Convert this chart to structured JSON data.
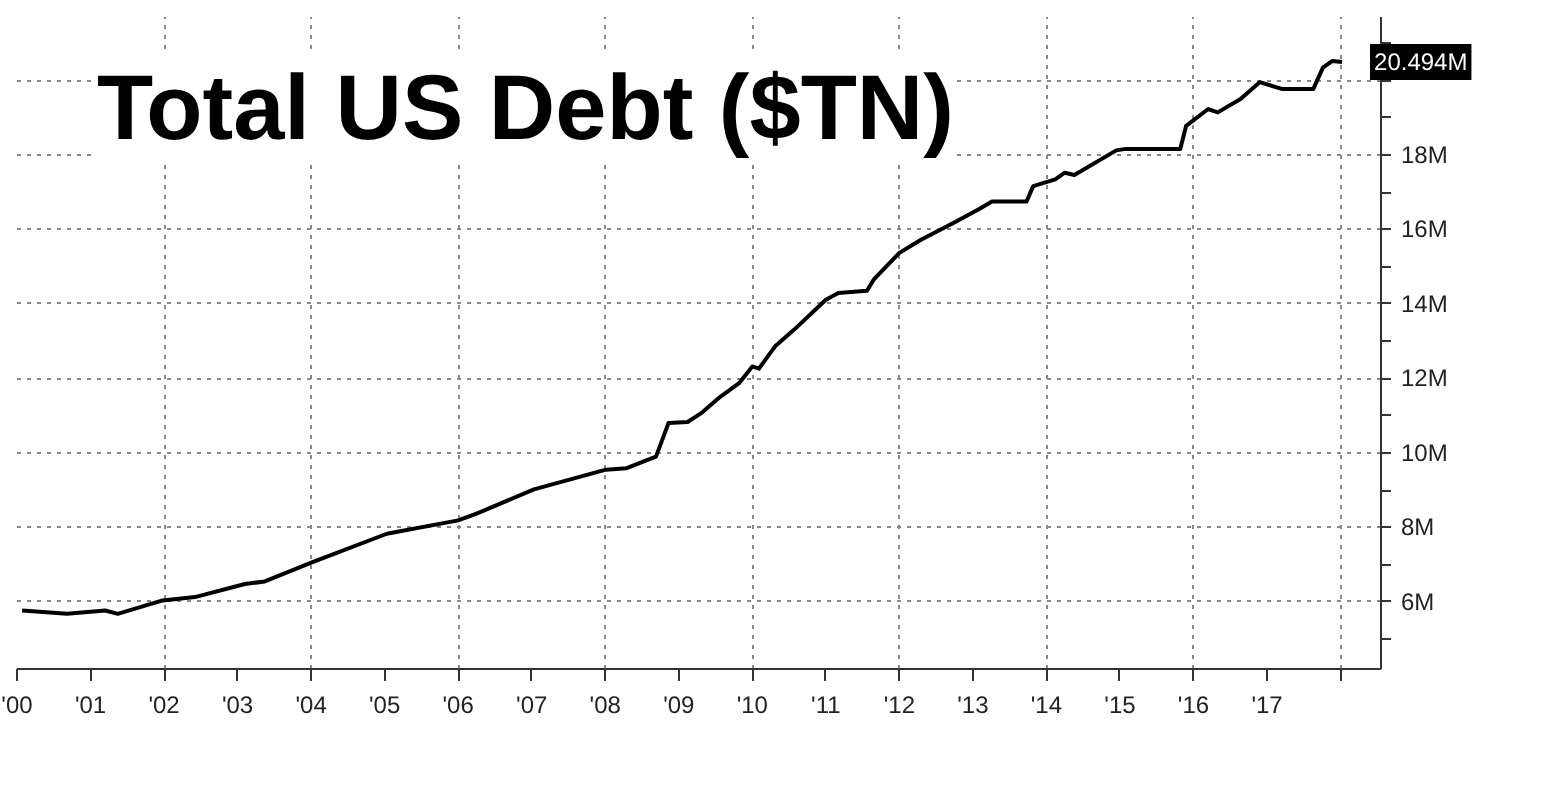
{
  "chart_data": {
    "type": "line",
    "title": "Total US Debt ($TN)",
    "x": [
      2000.07,
      2000.68,
      2001.2,
      2001.37,
      2001.98,
      2002.42,
      2003.1,
      2003.37,
      2004.01,
      2005.03,
      2006.0,
      2006.25,
      2007.03,
      2008.01,
      2008.29,
      2008.69,
      2008.86,
      2009.12,
      2009.3,
      2009.56,
      2009.82,
      2010.0,
      2010.09,
      2010.31,
      2010.57,
      2011.0,
      2011.17,
      2011.56,
      2011.65,
      2012.0,
      2012.3,
      2012.74,
      2013.08,
      2013.26,
      2013.73,
      2013.82,
      2014.12,
      2014.25,
      2014.38,
      2014.95,
      2015.08,
      2015.82,
      2015.9,
      2016.2,
      2016.33,
      2016.64,
      2016.9,
      2017.2,
      2017.63,
      2017.76,
      2017.89,
      2018.02
    ],
    "series": [
      {
        "color": "#000000",
        "values": [
          5.77,
          5.68,
          5.77,
          5.68,
          6.04,
          6.13,
          6.48,
          6.55,
          7.06,
          7.83,
          8.19,
          8.37,
          9.02,
          9.55,
          9.59,
          9.9,
          10.8,
          10.83,
          11.06,
          11.5,
          11.87,
          12.32,
          12.26,
          12.86,
          13.31,
          14.11,
          14.29,
          14.35,
          14.65,
          15.37,
          15.73,
          16.18,
          16.54,
          16.75,
          16.75,
          17.16,
          17.34,
          17.52,
          17.46,
          18.12,
          18.16,
          18.16,
          18.78,
          19.23,
          19.14,
          19.5,
          19.95,
          19.77,
          19.77,
          20.34,
          20.52,
          20.49
        ]
      }
    ],
    "xlim": [
      2000.0,
      2018.55
    ],
    "ylim": [
      4.2,
      21.7
    ],
    "xticks": [
      {
        "value": 2000,
        "label": "'00"
      },
      {
        "value": 2001,
        "label": "'01"
      },
      {
        "value": 2002,
        "label": "'02"
      },
      {
        "value": 2003,
        "label": "'03"
      },
      {
        "value": 2004,
        "label": "'04"
      },
      {
        "value": 2005,
        "label": "'05"
      },
      {
        "value": 2006,
        "label": "'06"
      },
      {
        "value": 2007,
        "label": "'07"
      },
      {
        "value": 2008,
        "label": "'08"
      },
      {
        "value": 2009,
        "label": "'09"
      },
      {
        "value": 2010,
        "label": "'10"
      },
      {
        "value": 2011,
        "label": "'11"
      },
      {
        "value": 2012,
        "label": "'12"
      },
      {
        "value": 2013,
        "label": "'13"
      },
      {
        "value": 2014,
        "label": "'14"
      },
      {
        "value": 2015,
        "label": "'15"
      },
      {
        "value": 2016,
        "label": "'16"
      },
      {
        "value": 2017,
        "label": "'17"
      },
      {
        "value": 2018,
        "label": null
      }
    ],
    "yticks": [
      {
        "value": 5,
        "label": null
      },
      {
        "value": 6,
        "label": "6M"
      },
      {
        "value": 7,
        "label": null
      },
      {
        "value": 8,
        "label": "8M"
      },
      {
        "value": 9,
        "label": null
      },
      {
        "value": 10,
        "label": "10M"
      },
      {
        "value": 11,
        "label": null
      },
      {
        "value": 12,
        "label": "12M"
      },
      {
        "value": 13,
        "label": null
      },
      {
        "value": 14,
        "label": "14M"
      },
      {
        "value": 15,
        "label": null
      },
      {
        "value": 16,
        "label": "16M"
      },
      {
        "value": 17,
        "label": null
      },
      {
        "value": 18,
        "label": "18M"
      },
      {
        "value": 19,
        "label": null
      },
      {
        "value": 20,
        "label": null
      },
      {
        "value": 21,
        "label": null
      }
    ],
    "annotations": [
      {
        "text": "20.494M",
        "x": 2018.02,
        "y": 20.494
      }
    ],
    "grid": true,
    "marker": "none",
    "line_style": "solid"
  }
}
